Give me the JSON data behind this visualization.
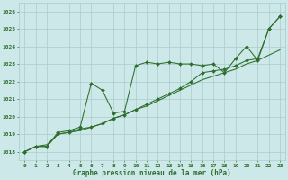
{
  "title": "Graphe pression niveau de la mer (hPa)",
  "bg_color": "#cce8e8",
  "grid_color": "#aacccc",
  "line_color": "#2d6e2d",
  "x_labels": [
    "0",
    "1",
    "2",
    "3",
    "4",
    "5",
    "6",
    "7",
    "8",
    "9",
    "10",
    "11",
    "12",
    "13",
    "14",
    "15",
    "16",
    "17",
    "18",
    "19",
    "20",
    "21",
    "22",
    "23"
  ],
  "ylim": [
    1017.5,
    1026.5
  ],
  "yticks": [
    1018,
    1019,
    1020,
    1021,
    1022,
    1023,
    1024,
    1025,
    1026
  ],
  "line1": [
    1018.0,
    1018.3,
    1018.3,
    1019.1,
    1019.2,
    1019.4,
    1021.9,
    1021.5,
    1020.2,
    1020.3,
    1022.9,
    1023.1,
    1023.0,
    1023.1,
    1023.0,
    1023.0,
    1022.9,
    1023.0,
    1022.5,
    1023.3,
    1024.0,
    1023.2,
    1025.0,
    1025.7
  ],
  "line2": [
    1018.0,
    1018.3,
    1018.3,
    1019.0,
    1019.1,
    1019.3,
    1019.4,
    1019.6,
    1019.9,
    1020.1,
    1020.4,
    1020.7,
    1021.0,
    1021.3,
    1021.6,
    1022.0,
    1022.5,
    1022.6,
    1022.7,
    1022.9,
    1023.2,
    1023.3,
    1025.0,
    1025.7
  ],
  "line3": [
    1018.0,
    1018.3,
    1018.4,
    1019.0,
    1019.1,
    1019.2,
    1019.4,
    1019.6,
    1019.9,
    1020.1,
    1020.4,
    1020.6,
    1020.9,
    1021.2,
    1021.5,
    1021.8,
    1022.1,
    1022.3,
    1022.5,
    1022.7,
    1023.0,
    1023.2,
    1023.5,
    1023.8
  ]
}
